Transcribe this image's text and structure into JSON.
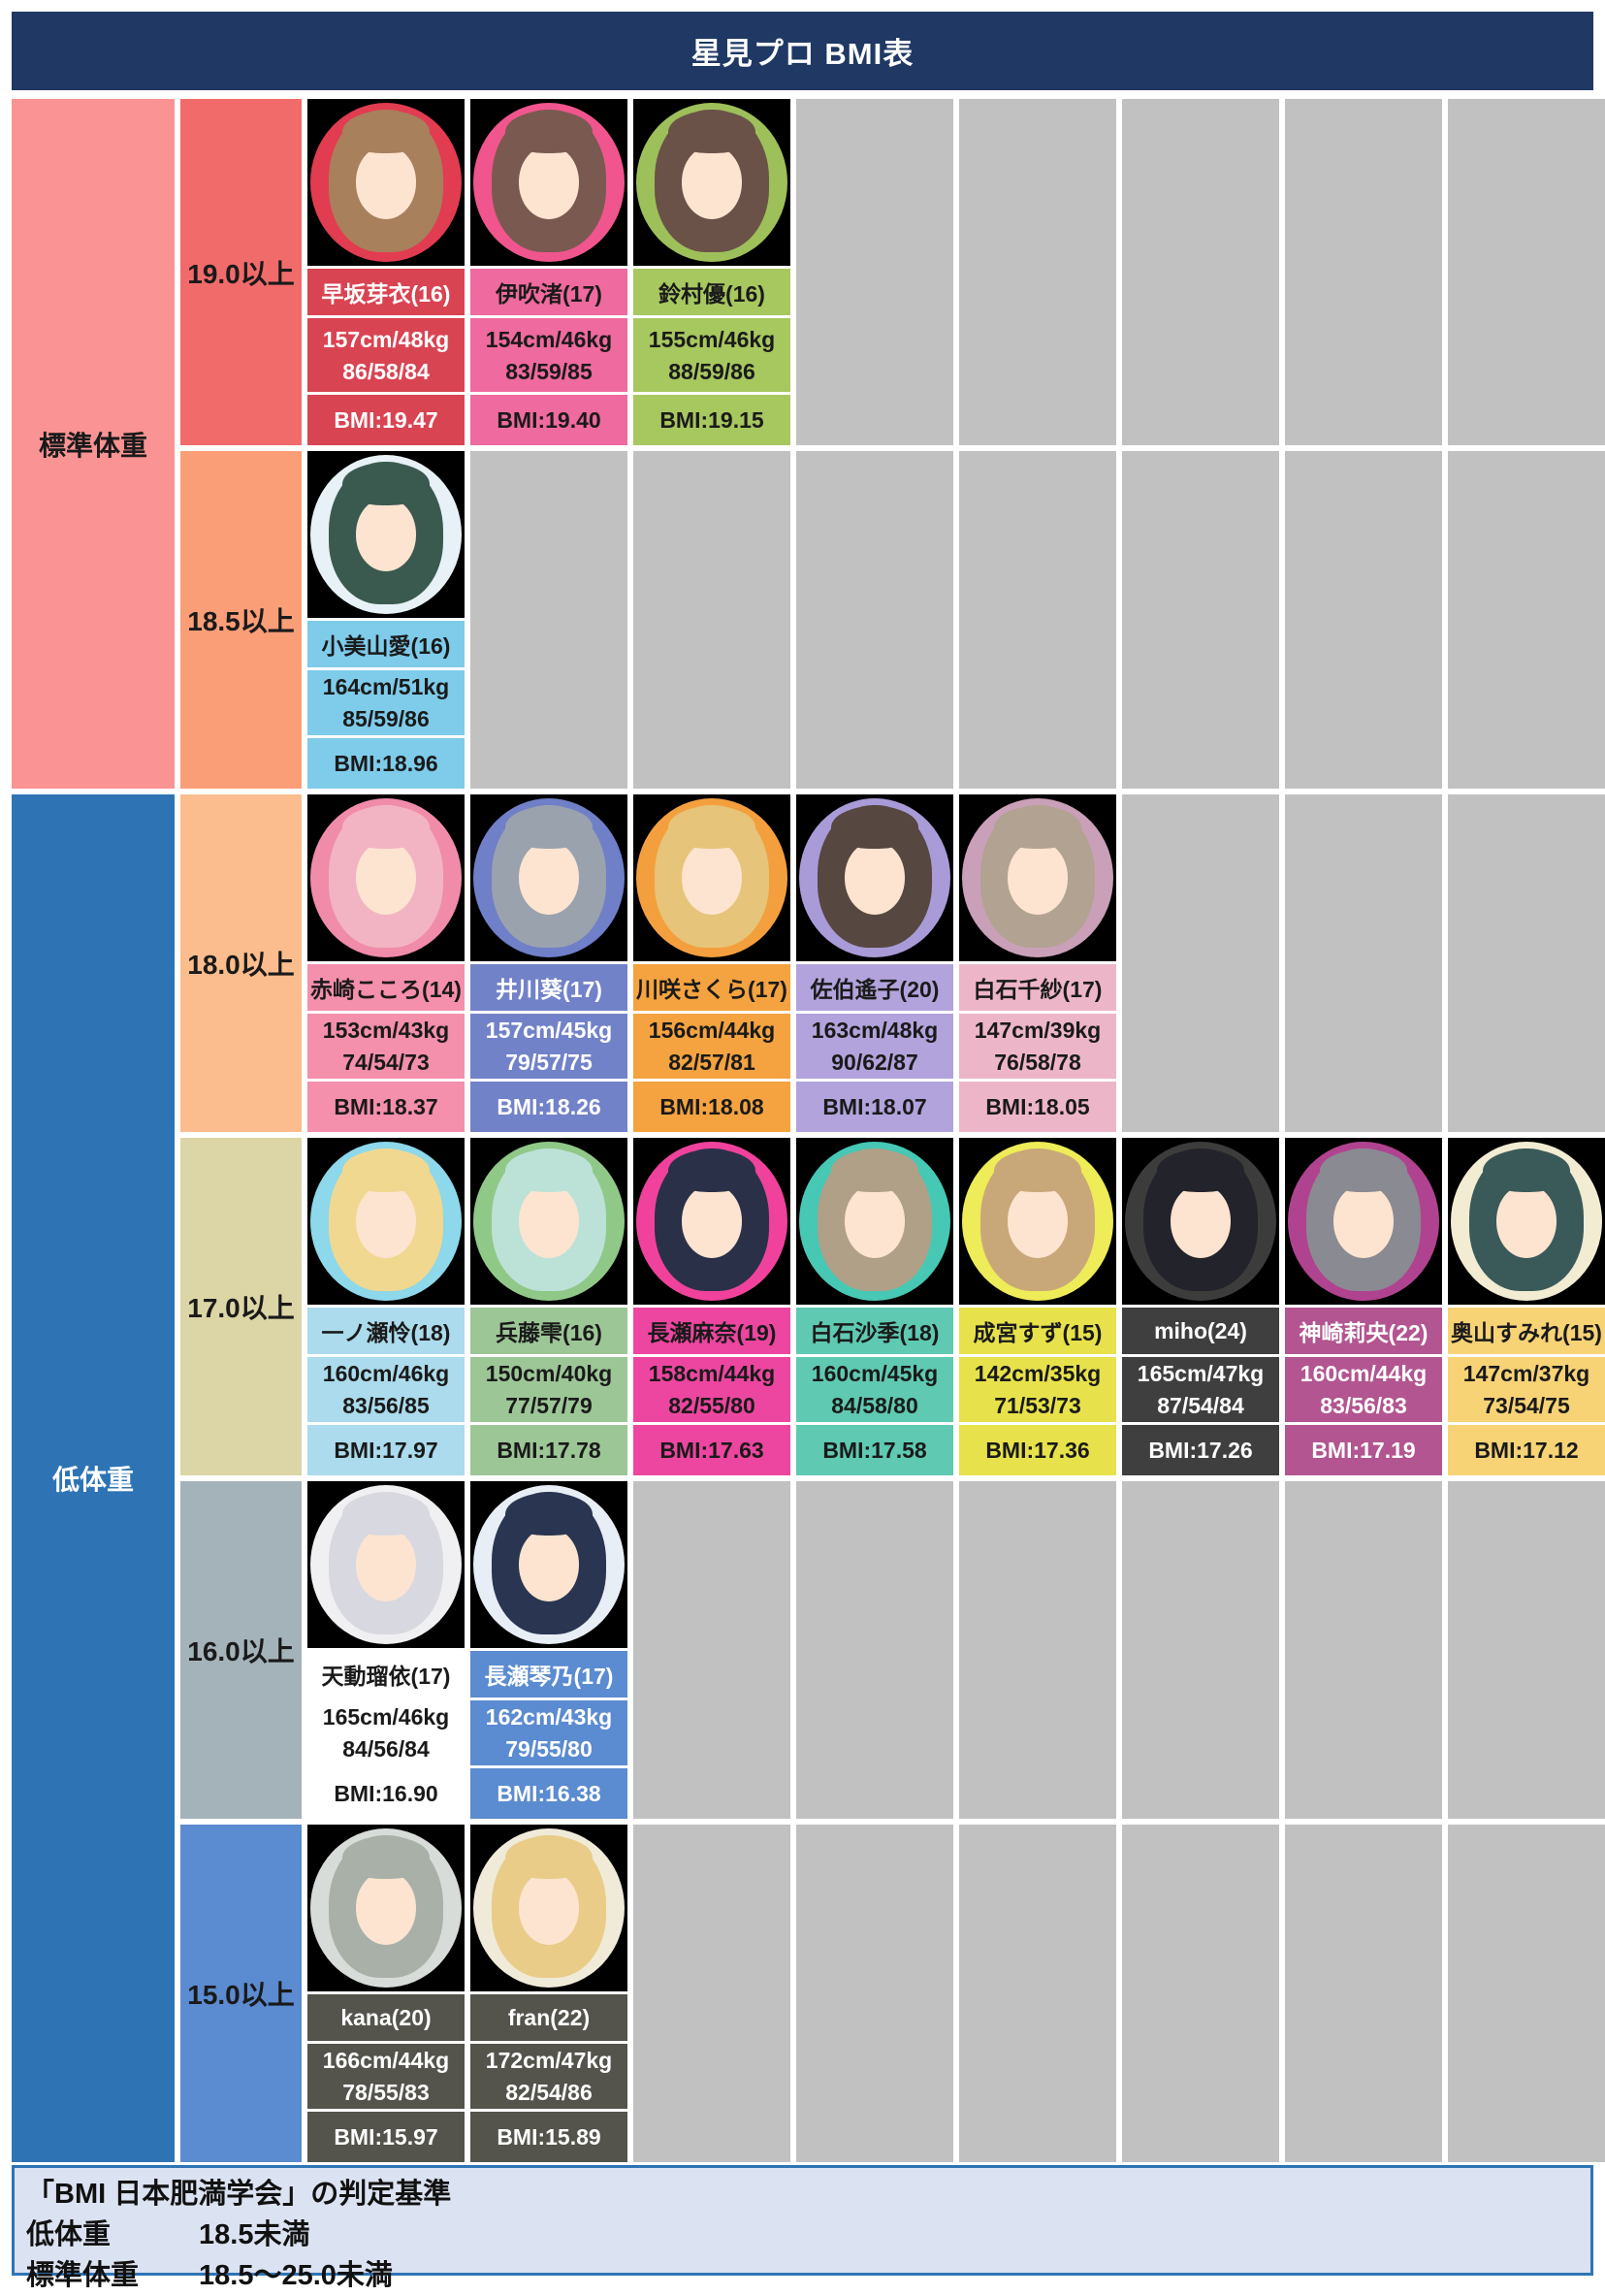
{
  "title": "星見プロ BMI表",
  "columns_per_row": 8,
  "colors": {
    "title_bg": "#1f3864",
    "empty_cell": "#c1c1c1",
    "legend_bg": "#dbe2f1",
    "legend_border": "#2e74b5",
    "page_bg": "#ffffff"
  },
  "legend": {
    "heading": "「BMI 日本肥満学会」の判定基準",
    "entries": [
      {
        "label": "低体重",
        "value": "18.5未満"
      },
      {
        "label": "標準体重",
        "value": "18.5〜25.0未満"
      }
    ]
  },
  "chart_data": {
    "type": "table",
    "title": "星見プロ BMI表",
    "groups": [
      {
        "label": "標準体重",
        "bg": "#fa9393",
        "fg": "#1a1a1a",
        "row_start": 1,
        "row_end": 2
      },
      {
        "label": "低体重",
        "bg": "#2e74b5",
        "fg": "#ffffff",
        "row_start": 3,
        "row_end": 6
      }
    ],
    "rows": [
      {
        "range_label": "19.0以上",
        "range_bg": "#f26b6b",
        "cards": [
          {
            "name": "早坂芽衣(16)",
            "height_weight": "157cm/48kg",
            "measurements": "86/58/84",
            "bmi": "BMI:19.47",
            "bg": "#d94452",
            "fg": "#ffffff",
            "avatar": {
              "circle": "#e23c50",
              "hair": "#a8805c"
            }
          },
          {
            "name": "伊吹渚(17)",
            "height_weight": "154cm/46kg",
            "measurements": "83/59/85",
            "bmi": "BMI:19.40",
            "bg": "#ef6a9e",
            "fg": "#1a1a1a",
            "avatar": {
              "circle": "#f0558e",
              "hair": "#7a5a50"
            }
          },
          {
            "name": "鈴村優(16)",
            "height_weight": "155cm/46kg",
            "measurements": "88/59/86",
            "bmi": "BMI:19.15",
            "bg": "#a7c75f",
            "fg": "#1a1a1a",
            "avatar": {
              "circle": "#9ec05a",
              "hair": "#6a5248"
            }
          }
        ]
      },
      {
        "range_label": "18.5以上",
        "range_bg": "#fa9e78",
        "cards": [
          {
            "name": "小美山愛(16)",
            "height_weight": "164cm/51kg",
            "measurements": "85/59/86",
            "bmi": "BMI:18.96",
            "bg": "#7ecbea",
            "fg": "#1a1a1a",
            "avatar": {
              "circle": "#e8f2f6",
              "hair": "#3a5a50"
            }
          }
        ]
      },
      {
        "range_label": "18.0以上",
        "range_bg": "#fbbd8d",
        "cards": [
          {
            "name": "赤崎こころ(14)",
            "height_weight": "153cm/43kg",
            "measurements": "74/54/73",
            "bmi": "BMI:18.37",
            "bg": "#f48fac",
            "fg": "#1a1a1a",
            "avatar": {
              "circle": "#f08caa",
              "hair": "#f2b4c2"
            }
          },
          {
            "name": "井川葵(17)",
            "height_weight": "157cm/45kg",
            "measurements": "79/57/75",
            "bmi": "BMI:18.26",
            "bg": "#7282c8",
            "fg": "#ffffff",
            "avatar": {
              "circle": "#6f7fc8",
              "hair": "#9aa2ae"
            }
          },
          {
            "name": "川咲さくら(17)",
            "height_weight": "156cm/44kg",
            "measurements": "82/57/81",
            "bmi": "BMI:18.08",
            "bg": "#f4a340",
            "fg": "#1a1a1a",
            "avatar": {
              "circle": "#f49f3e",
              "hair": "#e6c47a"
            }
          },
          {
            "name": "佐伯遙子(20)",
            "height_weight": "163cm/48kg",
            "measurements": "90/62/87",
            "bmi": "BMI:18.07",
            "bg": "#b2a3dc",
            "fg": "#1a1a1a",
            "avatar": {
              "circle": "#a99bd8",
              "hair": "#564741"
            }
          },
          {
            "name": "白石千紗(17)",
            "height_weight": "147cm/39kg",
            "measurements": "76/58/78",
            "bmi": "BMI:18.05",
            "bg": "#edb6c8",
            "fg": "#1a1a1a",
            "avatar": {
              "circle": "#c9a0b8",
              "hair": "#b2a291"
            }
          }
        ]
      },
      {
        "range_label": "17.0以上",
        "range_bg": "#dcd5a5",
        "cards": [
          {
            "name": "一ノ瀬怜(18)",
            "height_weight": "160cm/46kg",
            "measurements": "83/56/85",
            "bmi": "BMI:17.97",
            "bg": "#abdbec",
            "fg": "#1a1a1a",
            "avatar": {
              "circle": "#8dd8ea",
              "hair": "#f0d890"
            }
          },
          {
            "name": "兵藤雫(16)",
            "height_weight": "150cm/40kg",
            "measurements": "77/57/79",
            "bmi": "BMI:17.78",
            "bg": "#9dc697",
            "fg": "#1a1a1a",
            "avatar": {
              "circle": "#90c888",
              "hair": "#bce2d8"
            }
          },
          {
            "name": "長瀬麻奈(19)",
            "height_weight": "158cm/44kg",
            "measurements": "82/55/80",
            "bmi": "BMI:17.63",
            "bg": "#ec46a0",
            "fg": "#1a1a1a",
            "avatar": {
              "circle": "#f0429c",
              "hair": "#2a3048"
            }
          },
          {
            "name": "白石沙季(18)",
            "height_weight": "160cm/45kg",
            "measurements": "84/58/80",
            "bmi": "BMI:17.58",
            "bg": "#5fc9b2",
            "fg": "#1a1a1a",
            "avatar": {
              "circle": "#46c8b4",
              "hair": "#b0a088"
            }
          },
          {
            "name": "成宮すず(15)",
            "height_weight": "142cm/35kg",
            "measurements": "71/53/73",
            "bmi": "BMI:17.36",
            "bg": "#e7e24b",
            "fg": "#1a1a1a",
            "avatar": {
              "circle": "#eeec58",
              "hair": "#c8a878"
            }
          },
          {
            "name": "miho(24)",
            "height_weight": "165cm/47kg",
            "measurements": "87/54/84",
            "bmi": "BMI:17.26",
            "bg": "#3f3f3f",
            "fg": "#ffffff",
            "avatar": {
              "circle": "#3c3c3c",
              "hair": "#23232b"
            }
          },
          {
            "name": "神崎莉央(22)",
            "height_weight": "160cm/44kg",
            "measurements": "83/56/83",
            "bmi": "BMI:17.19",
            "bg": "#b25590",
            "fg": "#ffffff",
            "avatar": {
              "circle": "#b0438f",
              "hair": "#8a8a92"
            }
          },
          {
            "name": "奥山すみれ(15)",
            "height_weight": "147cm/37kg",
            "measurements": "73/54/75",
            "bmi": "BMI:17.12",
            "bg": "#f7d376",
            "fg": "#1a1a1a",
            "avatar": {
              "circle": "#f2ecd2",
              "hair": "#3a5a5a"
            }
          }
        ]
      },
      {
        "range_label": "16.0以上",
        "range_bg": "#a4b3b9",
        "cards": [
          {
            "name": "天動瑠依(17)",
            "height_weight": "165cm/46kg",
            "measurements": "84/56/84",
            "bmi": "BMI:16.90",
            "bg": "#ffffff",
            "fg": "#1a1a1a",
            "avatar": {
              "circle": "#f0f0f2",
              "hair": "#d8d8e0"
            }
          },
          {
            "name": "長瀬琴乃(17)",
            "height_weight": "162cm/43kg",
            "measurements": "79/55/80",
            "bmi": "BMI:16.38",
            "bg": "#5b8bd0",
            "fg": "#ffffff",
            "avatar": {
              "circle": "#e8eef5",
              "hair": "#2a3552"
            }
          }
        ]
      },
      {
        "range_label": "15.0以上",
        "range_bg": "#5b8bd0",
        "cards": [
          {
            "name": "kana(20)",
            "height_weight": "166cm/44kg",
            "measurements": "78/55/83",
            "bmi": "BMI:15.97",
            "bg": "#54544c",
            "fg": "#ffffff",
            "avatar": {
              "circle": "#d8dcd8",
              "hair": "#a8b0a8"
            }
          },
          {
            "name": "fran(22)",
            "height_weight": "172cm/47kg",
            "measurements": "82/54/86",
            "bmi": "BMI:15.89",
            "bg": "#54544c",
            "fg": "#ffffff",
            "avatar": {
              "circle": "#f0ead8",
              "hair": "#e8cc88"
            }
          }
        ]
      }
    ]
  }
}
